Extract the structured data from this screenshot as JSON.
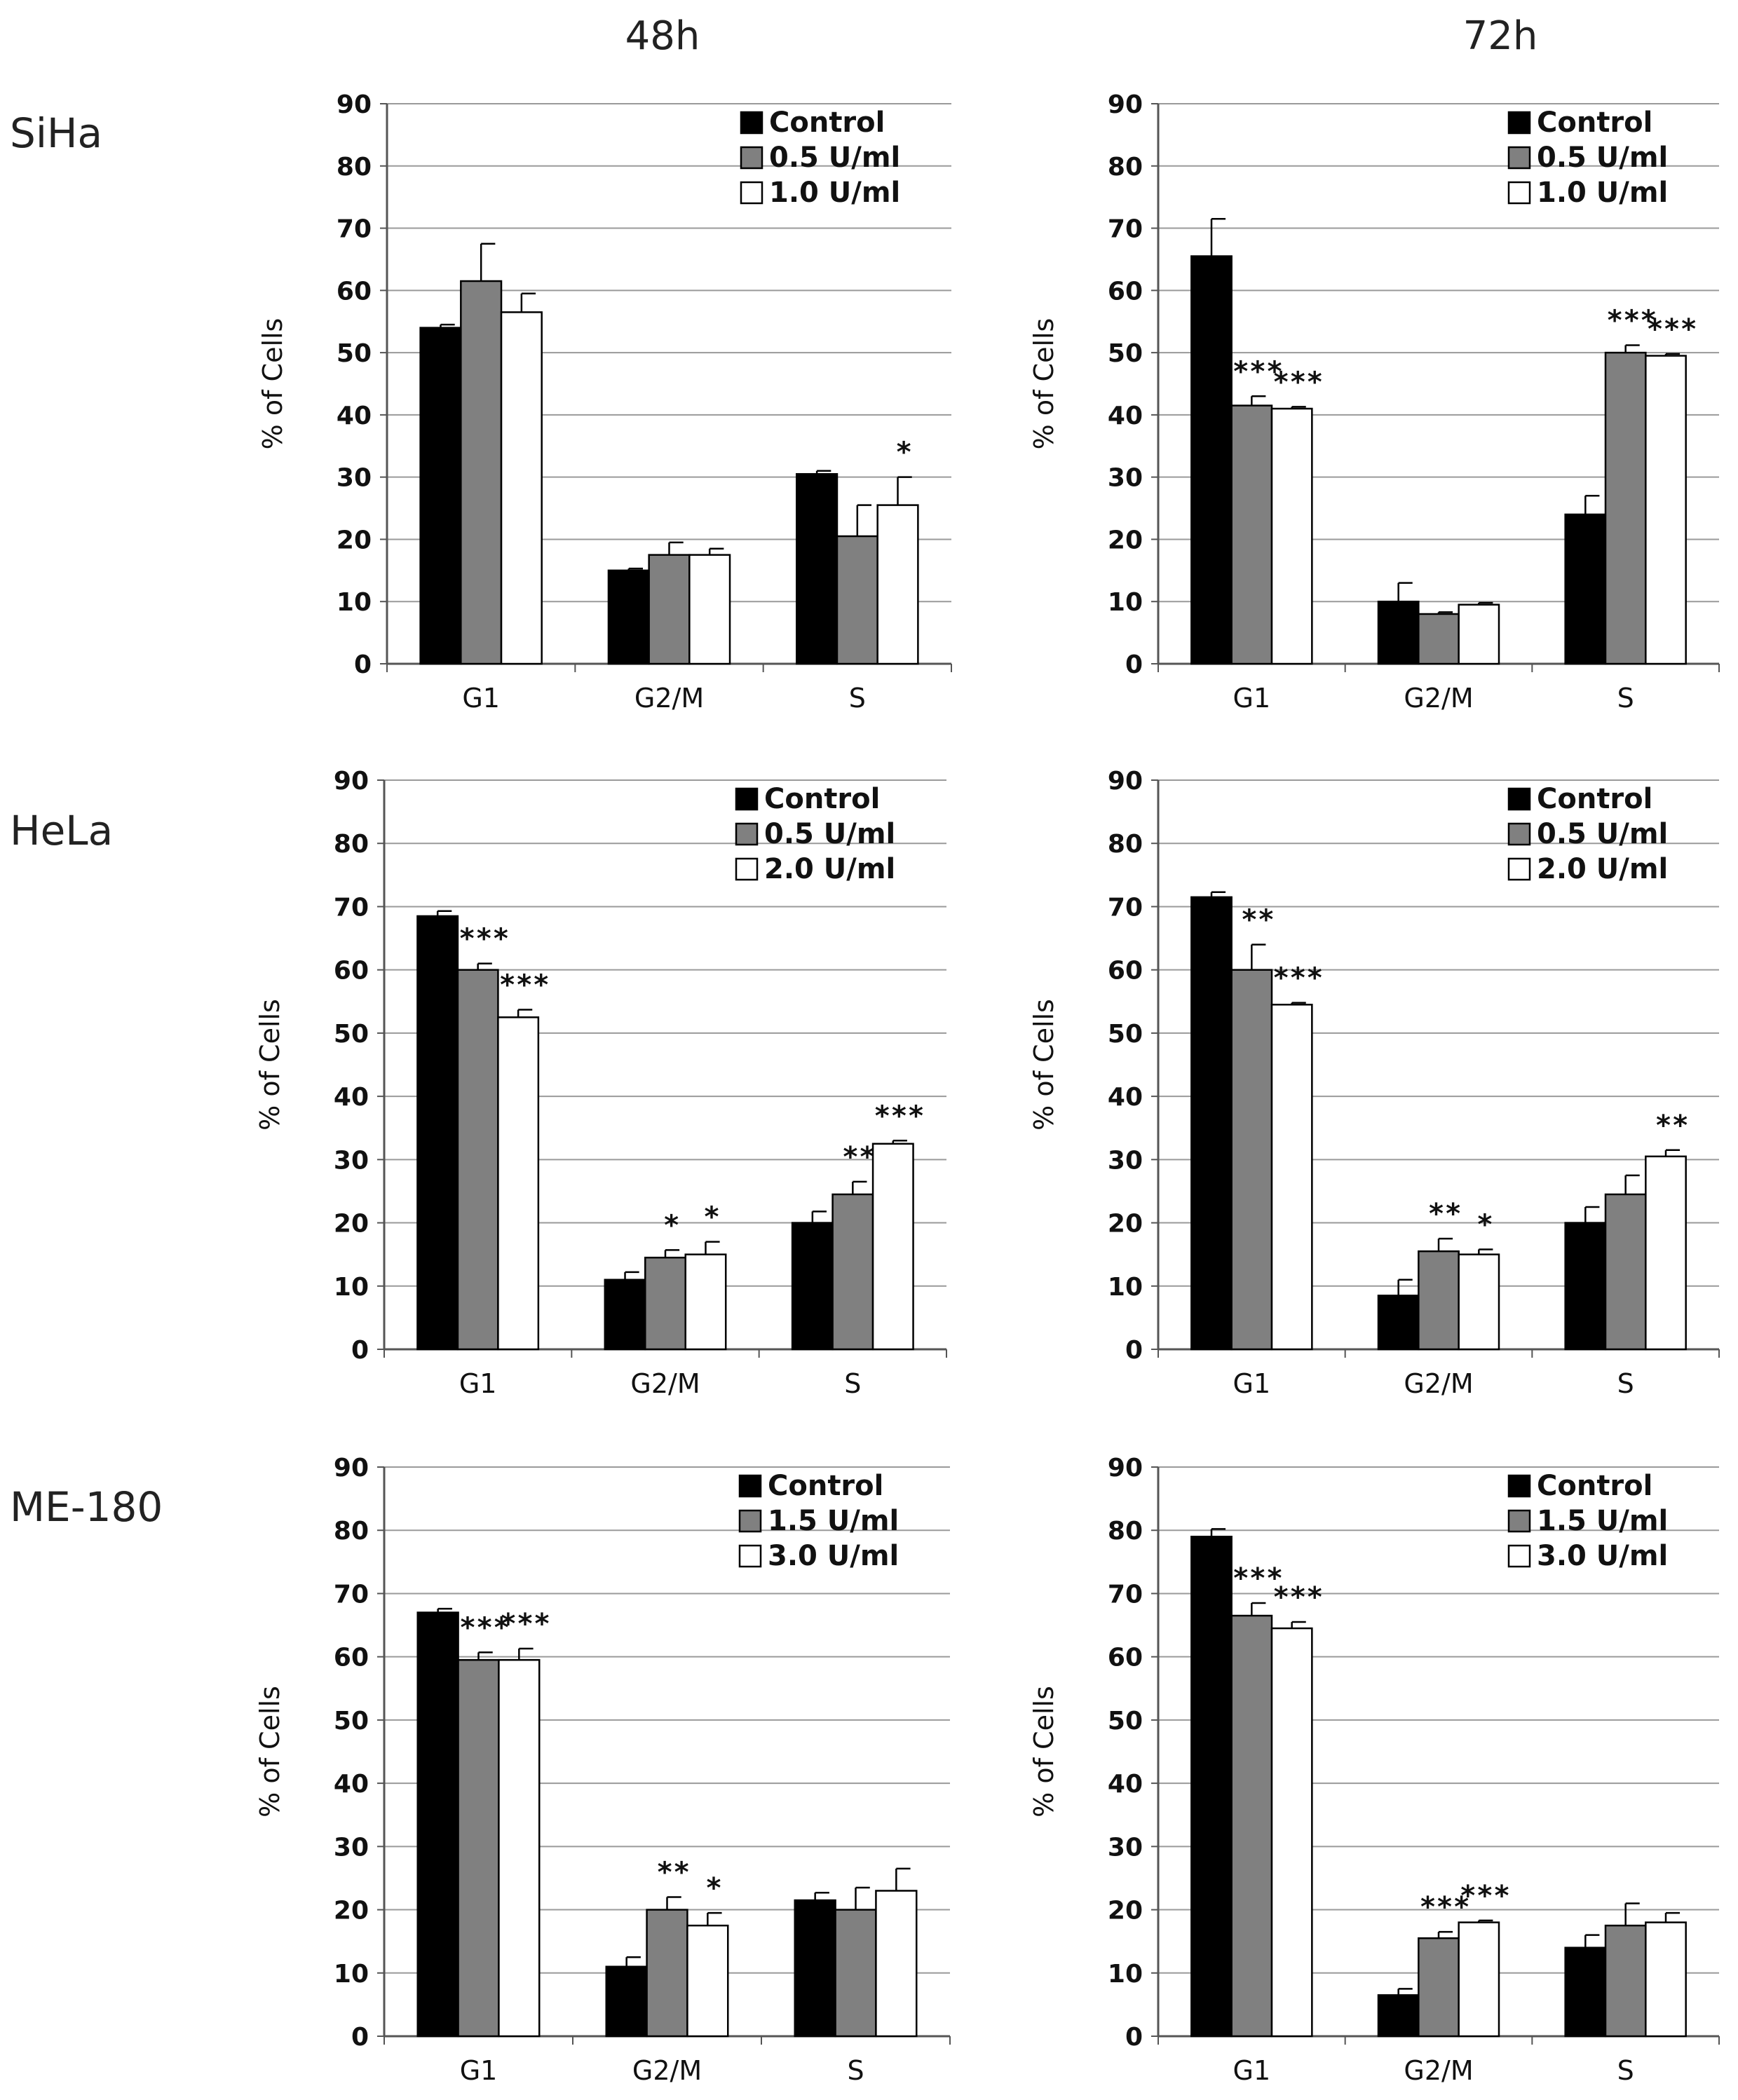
{
  "figure": {
    "column_titles": [
      "48h",
      "72h"
    ],
    "row_titles": [
      "SiHa",
      "HeLa",
      "ME-180"
    ]
  },
  "colors": {
    "control": "#000000",
    "low": "#808080",
    "high": "#ffffff",
    "grid": "#9a9a9a"
  },
  "chart_data": [
    {
      "type": "bar",
      "cell_line": "SiHa",
      "time": "48h",
      "ylabel": "% of Cells",
      "ylim": [
        0,
        90
      ],
      "yticks": [
        0,
        10,
        20,
        30,
        40,
        50,
        60,
        70,
        80,
        90
      ],
      "categories": [
        "G1",
        "G2/M",
        "S"
      ],
      "series": [
        {
          "name": "Control",
          "values": [
            54,
            15,
            30.5
          ],
          "errors": [
            0.5,
            0.3,
            0.5
          ],
          "sig": [
            "",
            "",
            ""
          ]
        },
        {
          "name": "0.5 U/ml",
          "values": [
            61.5,
            17.5,
            20.5
          ],
          "errors": [
            6,
            2,
            5
          ],
          "sig": [
            "",
            "",
            ""
          ]
        },
        {
          "name": "1.0 U/ml",
          "values": [
            56.5,
            17.5,
            25.5
          ],
          "errors": [
            3,
            1,
            4.5
          ],
          "sig": [
            "",
            "",
            "*"
          ]
        }
      ]
    },
    {
      "type": "bar",
      "cell_line": "SiHa",
      "time": "72h",
      "ylabel": "% of Cells",
      "ylim": [
        0,
        90
      ],
      "yticks": [
        0,
        10,
        20,
        30,
        40,
        50,
        60,
        70,
        80,
        90
      ],
      "categories": [
        "G1",
        "G2/M",
        "S"
      ],
      "series": [
        {
          "name": "Control",
          "values": [
            65.5,
            10,
            24
          ],
          "errors": [
            6,
            3,
            3
          ],
          "sig": [
            "",
            "",
            ""
          ]
        },
        {
          "name": "0.5 U/ml",
          "values": [
            41.5,
            8,
            50
          ],
          "errors": [
            1.5,
            0.3,
            1.2
          ],
          "sig": [
            "***",
            "",
            "***"
          ]
        },
        {
          "name": "1.0 U/ml",
          "values": [
            41,
            9.5,
            49.5
          ],
          "errors": [
            0.3,
            0.3,
            0.3
          ],
          "sig": [
            "***",
            "",
            "***"
          ]
        }
      ]
    },
    {
      "type": "bar",
      "cell_line": "HeLa",
      "time": "48h",
      "ylabel": "% of Cells",
      "ylim": [
        0,
        90
      ],
      "yticks": [
        0,
        10,
        20,
        30,
        40,
        50,
        60,
        70,
        80,
        90
      ],
      "categories": [
        "G1",
        "G2/M",
        "S"
      ],
      "series": [
        {
          "name": "Control",
          "values": [
            68.5,
            11,
            20
          ],
          "errors": [
            0.8,
            1.2,
            1.8
          ],
          "sig": [
            "",
            "",
            ""
          ]
        },
        {
          "name": "0.5 U/ml",
          "values": [
            60,
            14.5,
            24.5
          ],
          "errors": [
            1,
            1.2,
            2
          ],
          "sig": [
            "***",
            "*",
            "**"
          ]
        },
        {
          "name": "2.0 U/ml",
          "values": [
            52.5,
            15,
            32.5
          ],
          "errors": [
            1.2,
            2,
            0.5
          ],
          "sig": [
            "***",
            "*",
            "***"
          ]
        }
      ]
    },
    {
      "type": "bar",
      "cell_line": "HeLa",
      "time": "72h",
      "ylabel": "% of Cells",
      "ylim": [
        0,
        90
      ],
      "yticks": [
        0,
        10,
        20,
        30,
        40,
        50,
        60,
        70,
        80,
        90
      ],
      "categories": [
        "G1",
        "G2/M",
        "S"
      ],
      "series": [
        {
          "name": "Control",
          "values": [
            71.5,
            8.5,
            20
          ],
          "errors": [
            0.8,
            2.5,
            2.5
          ],
          "sig": [
            "",
            "",
            ""
          ]
        },
        {
          "name": "0.5 U/ml",
          "values": [
            60,
            15.5,
            24.5
          ],
          "errors": [
            4,
            2,
            3
          ],
          "sig": [
            "**",
            "**",
            ""
          ]
        },
        {
          "name": "2.0 U/ml",
          "values": [
            54.5,
            15,
            30.5
          ],
          "errors": [
            0.3,
            0.8,
            1
          ],
          "sig": [
            "***",
            "*",
            "**"
          ]
        }
      ]
    },
    {
      "type": "bar",
      "cell_line": "ME-180",
      "time": "48h",
      "ylabel": "% of Cells",
      "ylim": [
        0,
        90
      ],
      "yticks": [
        0,
        10,
        20,
        30,
        40,
        50,
        60,
        70,
        80,
        90
      ],
      "categories": [
        "G1",
        "G2/M",
        "S"
      ],
      "series": [
        {
          "name": "Control",
          "values": [
            67,
            11,
            21.5
          ],
          "errors": [
            0.6,
            1.5,
            1.2
          ],
          "sig": [
            "",
            "",
            ""
          ]
        },
        {
          "name": "1.5 U/ml",
          "values": [
            59.5,
            20,
            20
          ],
          "errors": [
            1.2,
            2,
            3.5
          ],
          "sig": [
            "***",
            "**",
            ""
          ]
        },
        {
          "name": "3.0 U/ml",
          "values": [
            59.5,
            17.5,
            23
          ],
          "errors": [
            1.8,
            2,
            3.5
          ],
          "sig": [
            "***",
            "*",
            ""
          ]
        }
      ]
    },
    {
      "type": "bar",
      "cell_line": "ME-180",
      "time": "72h",
      "ylabel": "% of Cells",
      "ylim": [
        0,
        90
      ],
      "yticks": [
        0,
        10,
        20,
        30,
        40,
        50,
        60,
        70,
        80,
        90
      ],
      "categories": [
        "G1",
        "G2/M",
        "S"
      ],
      "series": [
        {
          "name": "Control",
          "values": [
            79,
            6.5,
            14
          ],
          "errors": [
            1.2,
            1,
            2
          ],
          "sig": [
            "",
            "",
            ""
          ]
        },
        {
          "name": "1.5 U/ml",
          "values": [
            66.5,
            15.5,
            17.5
          ],
          "errors": [
            2,
            1,
            3.5
          ],
          "sig": [
            "***",
            "***",
            ""
          ]
        },
        {
          "name": "3.0 U/ml",
          "values": [
            64.5,
            18,
            18
          ],
          "errors": [
            1,
            0.3,
            1.5
          ],
          "sig": [
            "***",
            "***",
            ""
          ]
        }
      ]
    }
  ]
}
